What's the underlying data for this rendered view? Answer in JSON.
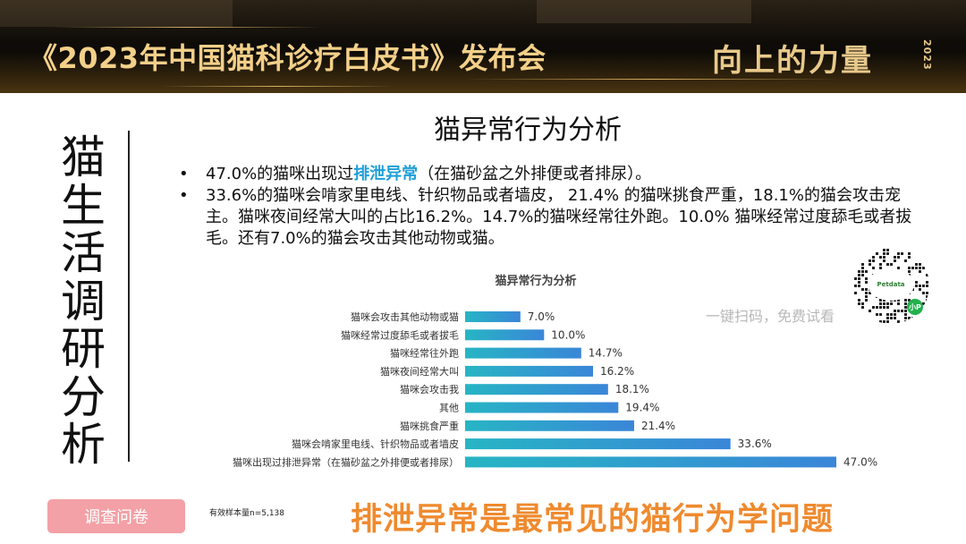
{
  "header": {
    "event_title": "《2023年中国猫科诊疗白皮书》发布会",
    "brand": "向上的力量",
    "brand_year": "2023"
  },
  "side_title": [
    "猫",
    "生",
    "活",
    "调",
    "研",
    "分",
    "析"
  ],
  "slide_title": "猫异常行为分析",
  "bullets": {
    "b1_pre": "47.0%的猫咪出现过",
    "b1_highlight": "排泄异常",
    "b1_post": "（在猫砂盆之外排便或者排尿）。",
    "b2": "33.6%的猫咪会啃家里电线、针织物品或者墙皮， 21.4% 的猫咪挑食严重，18.1%的猫会攻击宠主。猫咪夜间经常大叫的占比16.2%。14.7%的猫咪经常往外跑。10.0% 猫咪经常过度舔毛或者拔毛。还有7.0%的猫会攻击其他动物或猫。"
  },
  "qr": {
    "brand_text": "Petdata",
    "badge": "小P"
  },
  "scan_hint": "一键扫码，免费试看",
  "survey_button": "调查问卷",
  "sample_note": "有效样本量n=5,138",
  "conclusion": "排泄异常是最常见的猫行为学问题",
  "colors": {
    "bar_start": "#27b5c4",
    "bar_end": "#3a86d8",
    "highlight": "#1d9fd8",
    "conclusion": "#ef8a2e",
    "button": "#f3a1a6"
  },
  "chart_data": {
    "type": "bar",
    "orientation": "horizontal",
    "title": "猫异常行为分析",
    "xlim": [
      0,
      50
    ],
    "grid": false,
    "legend": "none",
    "categories": [
      "猫咪会攻击其他动物或猫",
      "猫咪经常过度舔毛或者拔毛",
      "猫咪经常往外跑",
      "猫咪夜间经常大叫",
      "猫咪会攻击我",
      "其他",
      "猫咪挑食严重",
      "猫咪会啃家里电线、针织物品或者墙皮",
      "猫咪出现过排泄异常（在猫砂盆之外排便或者排尿）"
    ],
    "values": [
      7.0,
      10.0,
      14.7,
      16.2,
      18.1,
      19.4,
      21.4,
      33.6,
      47.0
    ],
    "value_labels": [
      "7.0%",
      "10.0%",
      "14.7%",
      "16.2%",
      "18.1%",
      "19.4%",
      "21.4%",
      "33.6%",
      "47.0%"
    ]
  }
}
